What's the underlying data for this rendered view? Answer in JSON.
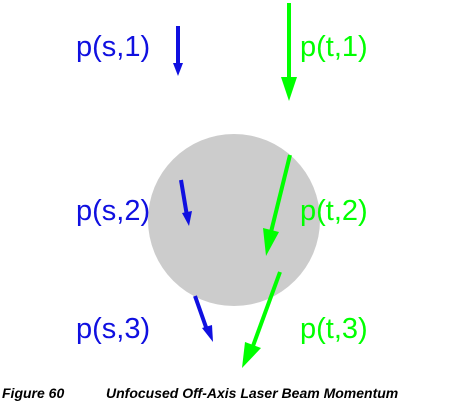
{
  "colors": {
    "s_series": "#1010e0",
    "t_series": "#00ff00",
    "beam_disc": "#cccccc"
  },
  "labels": {
    "s1": "p(s,1)",
    "s2": "p(s,2)",
    "s3": "p(s,3)",
    "t1": "p(t,1)",
    "t2": "p(t,2)",
    "t3": "p(t,3)"
  },
  "caption": {
    "figure": "Figure 60",
    "title": "Unfocused Off-Axis Laser Beam Momentum"
  }
}
